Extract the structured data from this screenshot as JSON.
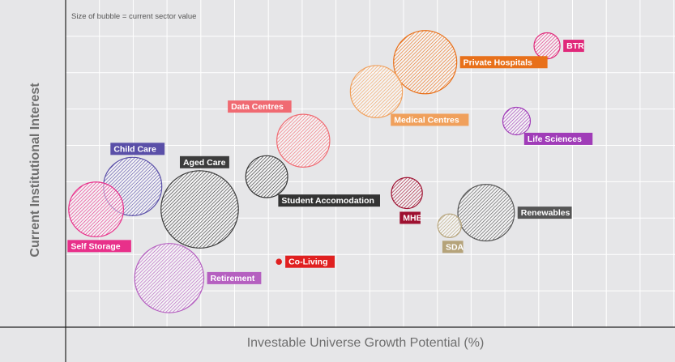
{
  "chart_data": {
    "type": "scatter",
    "variant": "bubble",
    "annotation": "Size of bubble  = current sector value",
    "xlabel": "Investable Universe Growth Potential (%)",
    "ylabel": "Current Institutional Interest",
    "xlim": [
      0,
      10
    ],
    "ylim": [
      0,
      10
    ],
    "grid": true,
    "legend": "none",
    "bubbles": [
      {
        "name": "Private Hospitals",
        "x": 5.9,
        "y": 8.1,
        "size": 100,
        "color": "#e8701a",
        "label_pos": "right"
      },
      {
        "name": "Medical Centres",
        "x": 5.1,
        "y": 7.2,
        "size": 68,
        "color": "#f0a05c",
        "label_pos": "below-right"
      },
      {
        "name": "BTR",
        "x": 7.9,
        "y": 8.6,
        "size": 17,
        "color": "#e0287a",
        "label_pos": "right"
      },
      {
        "name": "Life Sciences",
        "x": 7.4,
        "y": 6.3,
        "size": 19,
        "color": "#a03cb8",
        "label_pos": "below-right"
      },
      {
        "name": "Data Centres",
        "x": 3.9,
        "y": 5.7,
        "size": 70,
        "color": "#f06a72",
        "label_pos": "above-left"
      },
      {
        "name": "Student Accomodation",
        "x": 3.3,
        "y": 4.6,
        "size": 44,
        "color": "#333333",
        "label_pos": "below-right"
      },
      {
        "name": "MHE",
        "x": 5.6,
        "y": 4.1,
        "size": 24,
        "color": "#9e1030",
        "label_pos": "below"
      },
      {
        "name": "Renewables",
        "x": 6.9,
        "y": 3.5,
        "size": 80,
        "color": "#555555",
        "label_pos": "right"
      },
      {
        "name": "SDA",
        "x": 6.3,
        "y": 3.1,
        "size": 14,
        "color": "#b5a37a",
        "label_pos": "below"
      },
      {
        "name": "Child Care",
        "x": 1.1,
        "y": 4.3,
        "size": 85,
        "color": "#5a4fa8",
        "label_pos": "above"
      },
      {
        "name": "Self Storage",
        "x": 0.5,
        "y": 3.6,
        "size": 75,
        "color": "#e8308a",
        "label_pos": "below"
      },
      {
        "name": "Aged Care",
        "x": 2.2,
        "y": 3.6,
        "size": 150,
        "color": "#3c3c3c",
        "label_pos": "above"
      },
      {
        "name": "Retirement",
        "x": 1.7,
        "y": 1.5,
        "size": 120,
        "color": "#b560c0",
        "label_pos": "right"
      },
      {
        "name": "Co-Living",
        "x": 3.5,
        "y": 2.0,
        "size": 1,
        "color": "#e02020",
        "label_pos": "right"
      }
    ]
  }
}
